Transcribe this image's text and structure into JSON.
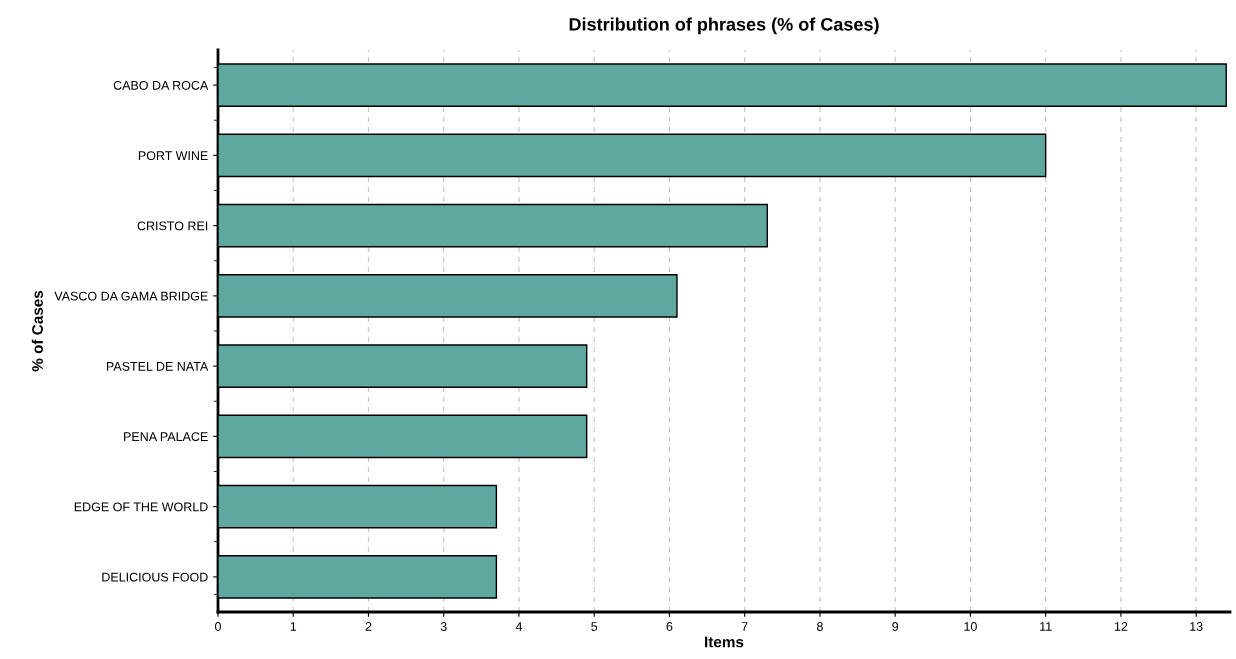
{
  "chart_data": {
    "type": "bar",
    "orientation": "horizontal",
    "title": "Distribution of phrases (% of Cases)",
    "xlabel": "Items",
    "ylabel": "% of Cases",
    "categories": [
      "CABO DA ROCA",
      "PORT WINE",
      "CRISTO REI",
      "VASCO DA GAMA BRIDGE",
      "PASTEL DE NATA",
      "PENA PALACE",
      "EDGE OF THE WORLD",
      "DELICIOUS FOOD"
    ],
    "values": [
      13.4,
      11.0,
      7.3,
      6.1,
      4.9,
      4.9,
      3.7,
      3.7
    ],
    "color": "#5fa8a0",
    "xlim": [
      0,
      13.45
    ],
    "xticks": [
      0,
      1,
      2,
      3,
      4,
      5,
      6,
      7,
      8,
      9,
      10,
      11,
      12,
      13
    ],
    "grid": "x",
    "legend": false
  }
}
